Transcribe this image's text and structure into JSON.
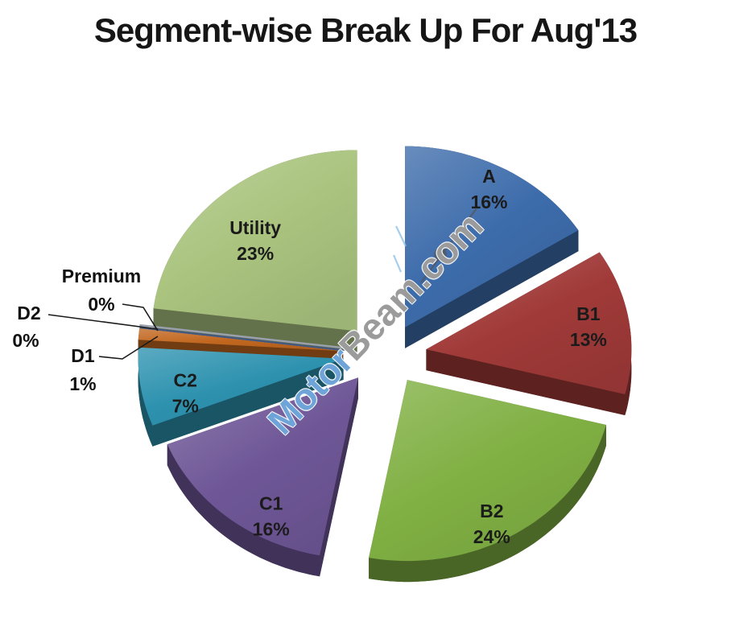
{
  "title": "Segment-wise Break Up For Aug'13",
  "watermark": {
    "part1": "Motor",
    "part2": "Beam.com",
    "color1": "#468ace",
    "color2": "#7a7a7a"
  },
  "chart_data": {
    "type": "pie",
    "style": "3d-exploded",
    "title": "Segment-wise Break Up For Aug'13",
    "rotation_start_deg": 0,
    "direction": "clockwise",
    "legend": "none",
    "background": "#ffffff",
    "label_format": "name + percent",
    "slices": [
      {
        "label": "A",
        "value": 16,
        "display": "16%",
        "color": "#3d6cab",
        "label_position": "inside"
      },
      {
        "label": "B1",
        "value": 13,
        "display": "13%",
        "color": "#a03a38",
        "label_position": "inside"
      },
      {
        "label": "B2",
        "value": 24,
        "display": "24%",
        "color": "#80b043",
        "label_position": "inside"
      },
      {
        "label": "C1",
        "value": 16,
        "display": "16%",
        "color": "#6f5797",
        "label_position": "inside"
      },
      {
        "label": "C2",
        "value": 7,
        "display": "7%",
        "color": "#2d92af",
        "label_position": "inside"
      },
      {
        "label": "D1",
        "value": 1,
        "display": "1%",
        "color": "#c2671f",
        "label_position": "outside"
      },
      {
        "label": "D2",
        "value": 0,
        "display": "0%",
        "color": "#44597f",
        "label_position": "outside"
      },
      {
        "label": "Premium",
        "value": 0,
        "display": "0%",
        "color": "#9aa0ae",
        "label_position": "outside"
      },
      {
        "label": "Utility",
        "value": 23,
        "display": "23%",
        "color": "#aac47f",
        "label_position": "inside"
      }
    ]
  }
}
